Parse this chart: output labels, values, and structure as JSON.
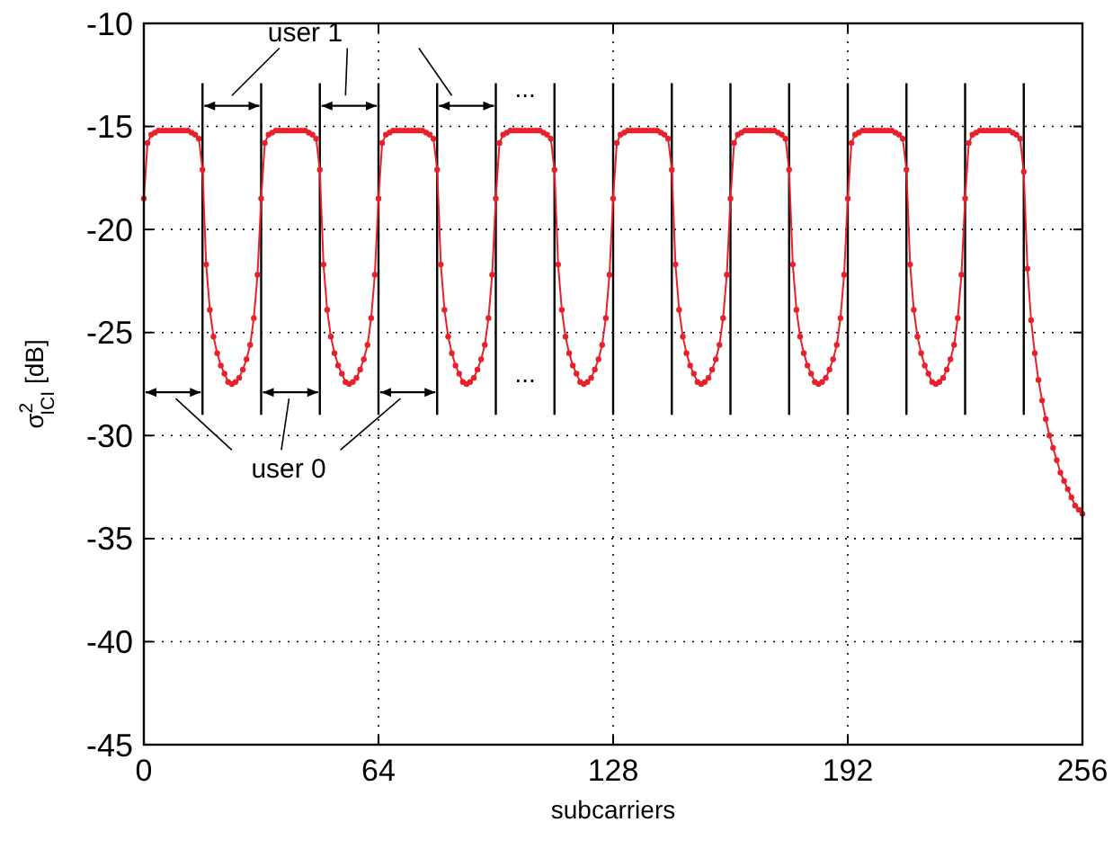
{
  "chart_data": {
    "type": "line",
    "xlabel": "subcarriers",
    "ylabel": "σ$^{2}$$_{ICI}$ [dB]",
    "xlim": [
      0,
      256
    ],
    "xticks": [
      0,
      64,
      128,
      192,
      256
    ],
    "ylim": [
      -45,
      -10
    ],
    "yticks": [
      -45,
      -40,
      -35,
      -30,
      -25,
      -20,
      -15,
      -10
    ],
    "grid": true,
    "marker": "circle",
    "line_style": "solid",
    "annotations": [
      "user 1",
      "user 0",
      "...",
      "..."
    ],
    "ref_lines": [
      {
        "axis": "x",
        "value": 16,
        "color": "#000000"
      },
      {
        "axis": "x",
        "value": 32,
        "color": "#000000"
      },
      {
        "axis": "x",
        "value": 48,
        "color": "#000000"
      },
      {
        "axis": "x",
        "value": 64,
        "color": "#000000"
      },
      {
        "axis": "x",
        "value": 80,
        "color": "#000000"
      },
      {
        "axis": "x",
        "value": 96,
        "color": "#000000"
      },
      {
        "axis": "x",
        "value": 112,
        "color": "#000000"
      },
      {
        "axis": "x",
        "value": 128,
        "color": "#000000"
      },
      {
        "axis": "x",
        "value": 144,
        "color": "#000000"
      },
      {
        "axis": "x",
        "value": 160,
        "color": "#000000"
      },
      {
        "axis": "x",
        "value": 176,
        "color": "#000000"
      },
      {
        "axis": "x",
        "value": 192,
        "color": "#000000"
      },
      {
        "axis": "x",
        "value": 208,
        "color": "#000000"
      },
      {
        "axis": "x",
        "value": 224,
        "color": "#000000"
      },
      {
        "axis": "x",
        "value": 240,
        "color": "#000000"
      }
    ],
    "x": [
      0,
      1,
      2,
      3,
      4,
      5,
      6,
      7,
      8,
      9,
      10,
      11,
      12,
      13,
      14,
      15,
      16,
      17,
      18,
      19,
      20,
      21,
      22,
      23,
      24,
      25,
      26,
      27,
      28,
      29,
      30,
      31,
      32,
      33,
      34,
      35,
      36,
      37,
      38,
      39,
      40,
      41,
      42,
      43,
      44,
      45,
      46,
      47,
      48,
      49,
      50,
      51,
      52,
      53,
      54,
      55,
      56,
      57,
      58,
      59,
      60,
      61,
      62,
      63,
      64,
      65,
      66,
      67,
      68,
      69,
      70,
      71,
      72,
      73,
      74,
      75,
      76,
      77,
      78,
      79,
      80,
      81,
      82,
      83,
      84,
      85,
      86,
      87,
      88,
      89,
      90,
      91,
      92,
      93,
      94,
      95,
      96,
      97,
      98,
      99,
      100,
      101,
      102,
      103,
      104,
      105,
      106,
      107,
      108,
      109,
      110,
      111,
      112,
      113,
      114,
      115,
      116,
      117,
      118,
      119,
      120,
      121,
      122,
      123,
      124,
      125,
      126,
      127,
      128,
      129,
      130,
      131,
      132,
      133,
      134,
      135,
      136,
      137,
      138,
      139,
      140,
      141,
      142,
      143,
      144,
      145,
      146,
      147,
      148,
      149,
      150,
      151,
      152,
      153,
      154,
      155,
      156,
      157,
      158,
      159,
      160,
      161,
      162,
      163,
      164,
      165,
      166,
      167,
      168,
      169,
      170,
      171,
      172,
      173,
      174,
      175,
      176,
      177,
      178,
      179,
      180,
      181,
      182,
      183,
      184,
      185,
      186,
      187,
      188,
      189,
      190,
      191,
      192,
      193,
      194,
      195,
      196,
      197,
      198,
      199,
      200,
      201,
      202,
      203,
      204,
      205,
      206,
      207,
      208,
      209,
      210,
      211,
      212,
      213,
      214,
      215,
      216,
      217,
      218,
      219,
      220,
      221,
      222,
      223,
      224,
      225,
      226,
      227,
      228,
      229,
      230,
      231,
      232,
      233,
      234,
      235,
      236,
      237,
      238,
      239,
      240,
      241,
      242,
      243,
      244,
      245,
      246,
      247,
      248,
      249,
      250,
      251,
      252,
      253,
      254,
      255,
      256
    ],
    "series": [
      {
        "color": "#e8202a",
        "values": [
          -18.5,
          -15.8,
          -15.4,
          -15.3,
          -15.2,
          -15.2,
          -15.2,
          -15.2,
          -15.2,
          -15.2,
          -15.2,
          -15.2,
          -15.2,
          -15.3,
          -15.4,
          -15.6,
          -17.1,
          -21.7,
          -23.9,
          -25.2,
          -26.0,
          -26.6,
          -27.0,
          -27.4,
          -27.5,
          -27.4,
          -27.2,
          -26.8,
          -26.3,
          -25.6,
          -24.3,
          -22.2,
          -18.5,
          -15.8,
          -15.4,
          -15.3,
          -15.2,
          -15.2,
          -15.2,
          -15.2,
          -15.2,
          -15.2,
          -15.2,
          -15.2,
          -15.2,
          -15.3,
          -15.4,
          -15.6,
          -17.1,
          -21.7,
          -23.9,
          -25.2,
          -26.0,
          -26.6,
          -27.0,
          -27.4,
          -27.5,
          -27.4,
          -27.2,
          -26.8,
          -26.3,
          -25.6,
          -24.3,
          -22.2,
          -18.5,
          -15.8,
          -15.4,
          -15.3,
          -15.2,
          -15.2,
          -15.2,
          -15.2,
          -15.2,
          -15.2,
          -15.2,
          -15.2,
          -15.2,
          -15.3,
          -15.4,
          -15.6,
          -17.1,
          -21.7,
          -23.9,
          -25.2,
          -26.0,
          -26.6,
          -27.0,
          -27.4,
          -27.5,
          -27.4,
          -27.2,
          -26.8,
          -26.3,
          -25.6,
          -24.3,
          -22.2,
          -18.5,
          -15.8,
          -15.4,
          -15.3,
          -15.2,
          -15.2,
          -15.2,
          -15.2,
          -15.2,
          -15.2,
          -15.2,
          -15.2,
          -15.2,
          -15.3,
          -15.4,
          -15.6,
          -17.1,
          -21.7,
          -23.9,
          -25.2,
          -26.0,
          -26.6,
          -27.0,
          -27.4,
          -27.5,
          -27.4,
          -27.2,
          -26.8,
          -26.3,
          -25.6,
          -24.3,
          -22.2,
          -18.5,
          -15.8,
          -15.4,
          -15.3,
          -15.2,
          -15.2,
          -15.2,
          -15.2,
          -15.2,
          -15.2,
          -15.2,
          -15.2,
          -15.2,
          -15.3,
          -15.4,
          -15.6,
          -17.1,
          -21.7,
          -23.9,
          -25.2,
          -26.0,
          -26.6,
          -27.0,
          -27.4,
          -27.5,
          -27.4,
          -27.2,
          -26.8,
          -26.3,
          -25.6,
          -24.3,
          -22.2,
          -18.5,
          -15.8,
          -15.4,
          -15.3,
          -15.2,
          -15.2,
          -15.2,
          -15.2,
          -15.2,
          -15.2,
          -15.2,
          -15.2,
          -15.2,
          -15.3,
          -15.4,
          -15.6,
          -17.1,
          -21.7,
          -23.9,
          -25.2,
          -26.0,
          -26.6,
          -27.0,
          -27.4,
          -27.5,
          -27.4,
          -27.2,
          -26.8,
          -26.3,
          -25.6,
          -24.3,
          -22.2,
          -18.5,
          -15.8,
          -15.4,
          -15.3,
          -15.2,
          -15.2,
          -15.2,
          -15.2,
          -15.2,
          -15.2,
          -15.2,
          -15.2,
          -15.2,
          -15.3,
          -15.4,
          -15.6,
          -17.1,
          -21.7,
          -23.9,
          -25.2,
          -26.0,
          -26.6,
          -27.0,
          -27.4,
          -27.5,
          -27.4,
          -27.2,
          -26.8,
          -26.3,
          -25.6,
          -24.3,
          -22.2,
          -18.5,
          -15.8,
          -15.4,
          -15.3,
          -15.2,
          -15.2,
          -15.2,
          -15.2,
          -15.2,
          -15.2,
          -15.2,
          -15.2,
          -15.2,
          -15.3,
          -15.4,
          -15.6,
          -17.2,
          -21.9,
          -24.4,
          -26.0,
          -27.3,
          -28.3,
          -29.2,
          -30.0,
          -30.6,
          -31.2,
          -31.8,
          -32.2,
          -32.6,
          -33.0,
          -33.4,
          -33.6,
          -33.8
        ]
      }
    ]
  }
}
